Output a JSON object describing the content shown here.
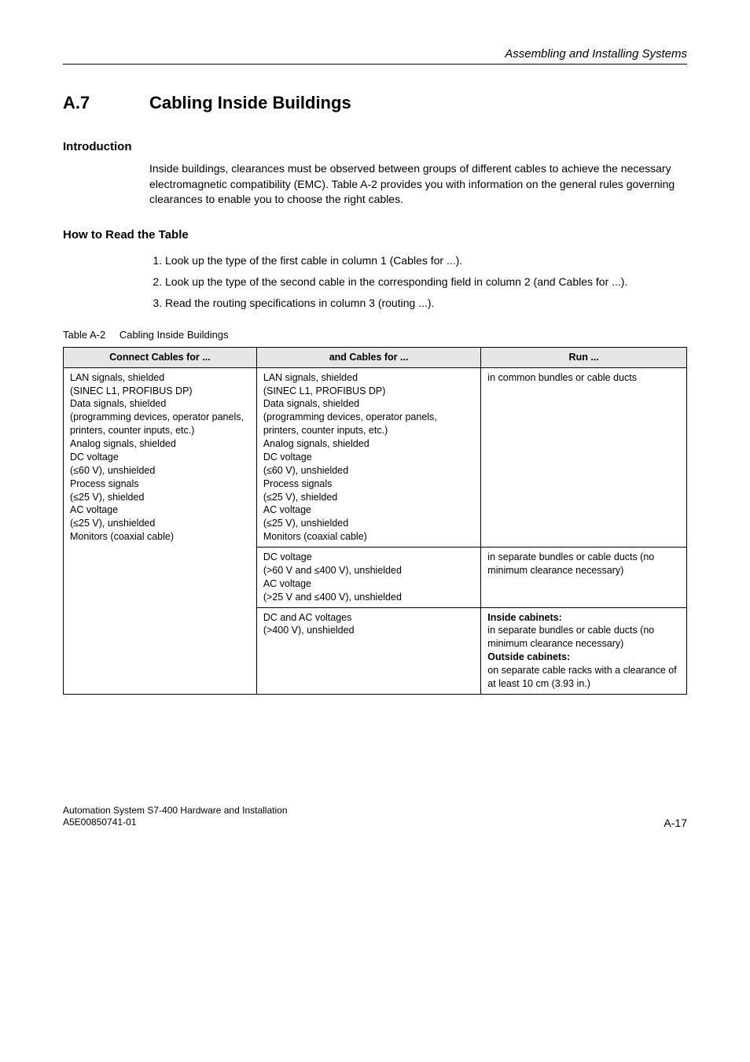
{
  "running_head": "Assembling and Installing Systems",
  "section": {
    "number": "A.7",
    "title": "Cabling Inside Buildings"
  },
  "intro": {
    "heading": "Introduction",
    "body": "Inside buildings, clearances must be observed between groups of different cables to achieve the necessary electromagnetic compatibility (EMC). Table A-2 provides you with information on the general rules governing clearances to enable you to choose the right cables."
  },
  "howto": {
    "heading": "How to Read the Table",
    "steps": [
      "Look up the type of the first cable in column 1 (Cables for ...).",
      "Look up the type of the second cable in the corresponding field in column 2 (and Cables for ...).",
      "Read the routing specifications in column 3 (routing ...)."
    ]
  },
  "table": {
    "caption_label": "Table A-2",
    "caption": "Cabling Inside Buildings",
    "headers": [
      "Connect Cables for ...",
      "and Cables for ...",
      "Run ..."
    ],
    "col_widths": [
      "31%",
      "36%",
      "33%"
    ],
    "rows": [
      {
        "c1": "LAN signals, shielded\n(SINEC L1, PROFIBUS DP)\nData signals, shielded\n(programming devices, operator panels, printers, counter inputs, etc.)\nAnalog signals, shielded\nDC voltage\n(≤60 V), unshielded\nProcess signals\n(≤25 V), shielded\nAC voltage\n(≤25 V), unshielded\nMonitors (coaxial cable)",
        "c1_rowspan": 3,
        "c2": "LAN signals, shielded\n(SINEC L1, PROFIBUS DP)\nData signals, shielded\n(programming devices, operator panels, printers, counter inputs, etc.)\nAnalog signals, shielded\nDC voltage\n(≤60 V), unshielded\nProcess signals\n(≤25 V), shielded\nAC voltage\n(≤25 V), unshielded\nMonitors (coaxial cable)",
        "c3": "in common bundles or cable ducts"
      },
      {
        "c2": "DC voltage\n(>60 V and ≤400 V), unshielded\nAC voltage\n(>25 V and    ≤400 V), unshielded",
        "c3": "in separate bundles or cable ducts (no minimum clearance necessary)"
      },
      {
        "c2": "DC and AC voltages\n(>400 V), unshielded",
        "c3_html": "<b>Inside cabinets:</b><br>in separate bundles or cable ducts (no minimum clearance necessary)<br><b>Outside cabinets:</b><br>on separate cable racks with a clearance of at least 10 cm (3.93 in.)"
      }
    ]
  },
  "footer": {
    "left_line1": "Automation System S7-400  Hardware and Installation",
    "left_line2": "A5E00850741-01",
    "right": "A-17"
  },
  "colors": {
    "text": "#000000",
    "th_bg": "#e6e6e6",
    "bg": "#ffffff"
  },
  "fonts": {
    "base": "Arial, Helvetica, sans-serif",
    "running_head_pt": 15,
    "sec_pt": 22,
    "subhead_pt": 15,
    "body_pt": 14,
    "table_pt": 12.5,
    "footer_pt": 12
  }
}
